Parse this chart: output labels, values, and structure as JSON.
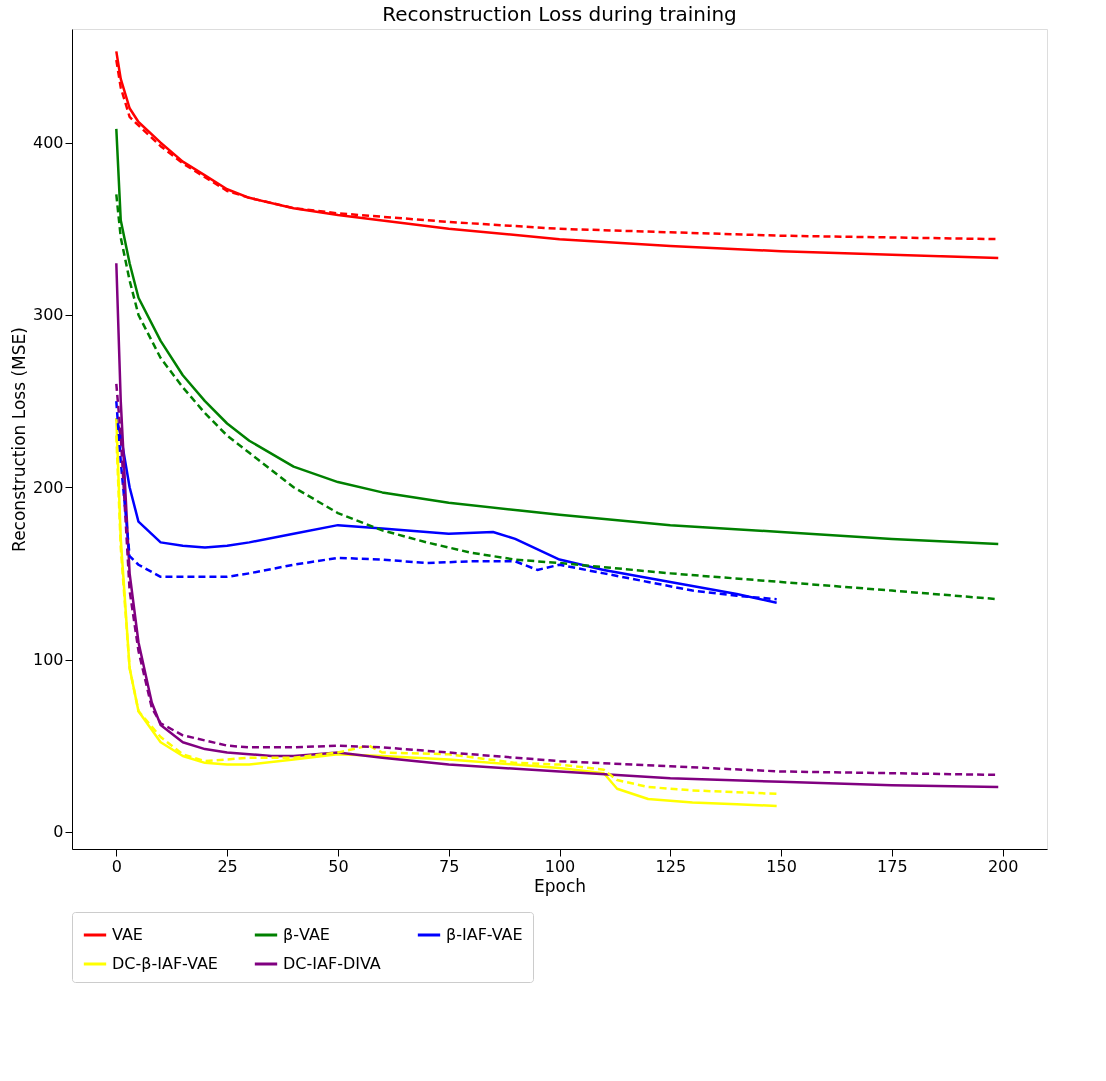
{
  "chart_data": {
    "type": "line",
    "title": "Reconstruction Loss during training",
    "xlabel": "Epoch",
    "ylabel": "Reconstruction Loss (MSE)",
    "xlim": [
      -10,
      210
    ],
    "ylim": [
      -10,
      466
    ],
    "xticks": [
      0,
      25,
      50,
      75,
      100,
      125,
      150,
      175,
      200
    ],
    "yticks": [
      0,
      100,
      200,
      300,
      400
    ],
    "grid": false,
    "legend": "bottom",
    "marker": "none",
    "series": [
      {
        "name": "VAE",
        "color": "#ff0000",
        "line_style": "solid",
        "x": [
          0,
          1,
          3,
          5,
          10,
          15,
          20,
          25,
          30,
          40,
          50,
          75,
          100,
          125,
          150,
          175,
          199
        ],
        "values": [
          453,
          437,
          420,
          412,
          400,
          389,
          381,
          373,
          368,
          362,
          358,
          350,
          344,
          340,
          337,
          335,
          333
        ]
      },
      {
        "name": "β-VAE",
        "color": "#008000",
        "line_style": "solid",
        "x": [
          0,
          1,
          3,
          5,
          10,
          15,
          20,
          25,
          30,
          40,
          50,
          60,
          75,
          100,
          125,
          150,
          175,
          199
        ],
        "values": [
          408,
          355,
          330,
          310,
          285,
          265,
          250,
          237,
          227,
          212,
          203,
          197,
          191,
          184,
          178,
          174,
          170,
          167
        ]
      },
      {
        "name": "β-IAF-VAE",
        "color": "#0000ff",
        "line_style": "solid",
        "x": [
          0,
          1,
          3,
          5,
          10,
          15,
          20,
          25,
          30,
          40,
          50,
          60,
          75,
          85,
          90,
          100,
          110,
          125,
          140,
          149
        ],
        "values": [
          240,
          230,
          200,
          180,
          168,
          166,
          165,
          166,
          168,
          173,
          178,
          176,
          173,
          174,
          170,
          158,
          152,
          145,
          138,
          133
        ]
      },
      {
        "name": "DC-β-IAF-VAE",
        "color": "#ffff00",
        "line_style": "solid",
        "x": [
          0,
          1,
          3,
          5,
          10,
          15,
          20,
          25,
          30,
          40,
          50,
          60,
          75,
          90,
          100,
          110,
          113,
          120,
          130,
          140,
          149
        ],
        "values": [
          240,
          170,
          95,
          70,
          52,
          44,
          40,
          39,
          39,
          42,
          45,
          44,
          42,
          39,
          37,
          34,
          25,
          19,
          17,
          16,
          15
        ]
      },
      {
        "name": "DC-IAF-DIVA",
        "color": "#800080",
        "line_style": "solid",
        "x": [
          0,
          1,
          3,
          5,
          8,
          10,
          15,
          20,
          25,
          30,
          35,
          40,
          50,
          60,
          75,
          100,
          125,
          150,
          175,
          199
        ],
        "values": [
          330,
          250,
          150,
          110,
          75,
          62,
          52,
          48,
          46,
          45,
          44,
          44,
          46,
          43,
          39,
          35,
          31,
          29,
          27,
          26
        ]
      },
      {
        "color": "#ff0000",
        "line_style": "dashed",
        "x": [
          0,
          1,
          3,
          5,
          10,
          15,
          20,
          25,
          30,
          40,
          50,
          75,
          100,
          125,
          150,
          175,
          199
        ],
        "values": [
          448,
          432,
          415,
          410,
          398,
          388,
          380,
          372,
          368,
          362,
          359,
          354,
          350,
          348,
          346,
          345,
          344
        ]
      },
      {
        "color": "#008000",
        "line_style": "dashed",
        "x": [
          0,
          1,
          3,
          5,
          10,
          15,
          20,
          25,
          30,
          40,
          50,
          60,
          70,
          80,
          90,
          100,
          125,
          150,
          175,
          199
        ],
        "values": [
          370,
          345,
          320,
          300,
          275,
          258,
          243,
          230,
          220,
          200,
          185,
          175,
          168,
          162,
          158,
          156,
          150,
          145,
          140,
          135
        ]
      },
      {
        "color": "#0000ff",
        "line_style": "dashed",
        "x": [
          0,
          1,
          3,
          5,
          10,
          15,
          20,
          25,
          30,
          40,
          50,
          60,
          70,
          80,
          90,
          95,
          100,
          110,
          120,
          130,
          140,
          149
        ],
        "values": [
          250,
          215,
          160,
          155,
          148,
          148,
          148,
          148,
          150,
          155,
          159,
          158,
          156,
          157,
          157,
          152,
          155,
          150,
          145,
          140,
          137,
          135
        ]
      },
      {
        "color": "#ffff00",
        "line_style": "dashed",
        "x": [
          0,
          1,
          3,
          5,
          10,
          15,
          20,
          25,
          30,
          40,
          50,
          57,
          60,
          75,
          90,
          100,
          110,
          113,
          120,
          130,
          140,
          149
        ],
        "values": [
          230,
          165,
          95,
          70,
          55,
          45,
          41,
          42,
          43,
          43,
          46,
          50,
          46,
          45,
          40,
          39,
          36,
          30,
          26,
          24,
          23,
          22
        ]
      },
      {
        "color": "#800080",
        "line_style": "dashed",
        "x": [
          0,
          1,
          3,
          5,
          8,
          10,
          15,
          20,
          25,
          30,
          40,
          50,
          60,
          75,
          100,
          125,
          150,
          175,
          199
        ],
        "values": [
          260,
          230,
          140,
          105,
          72,
          63,
          56,
          53,
          50,
          49,
          49,
          50,
          49,
          46,
          41,
          38,
          35,
          34,
          33
        ]
      }
    ]
  }
}
